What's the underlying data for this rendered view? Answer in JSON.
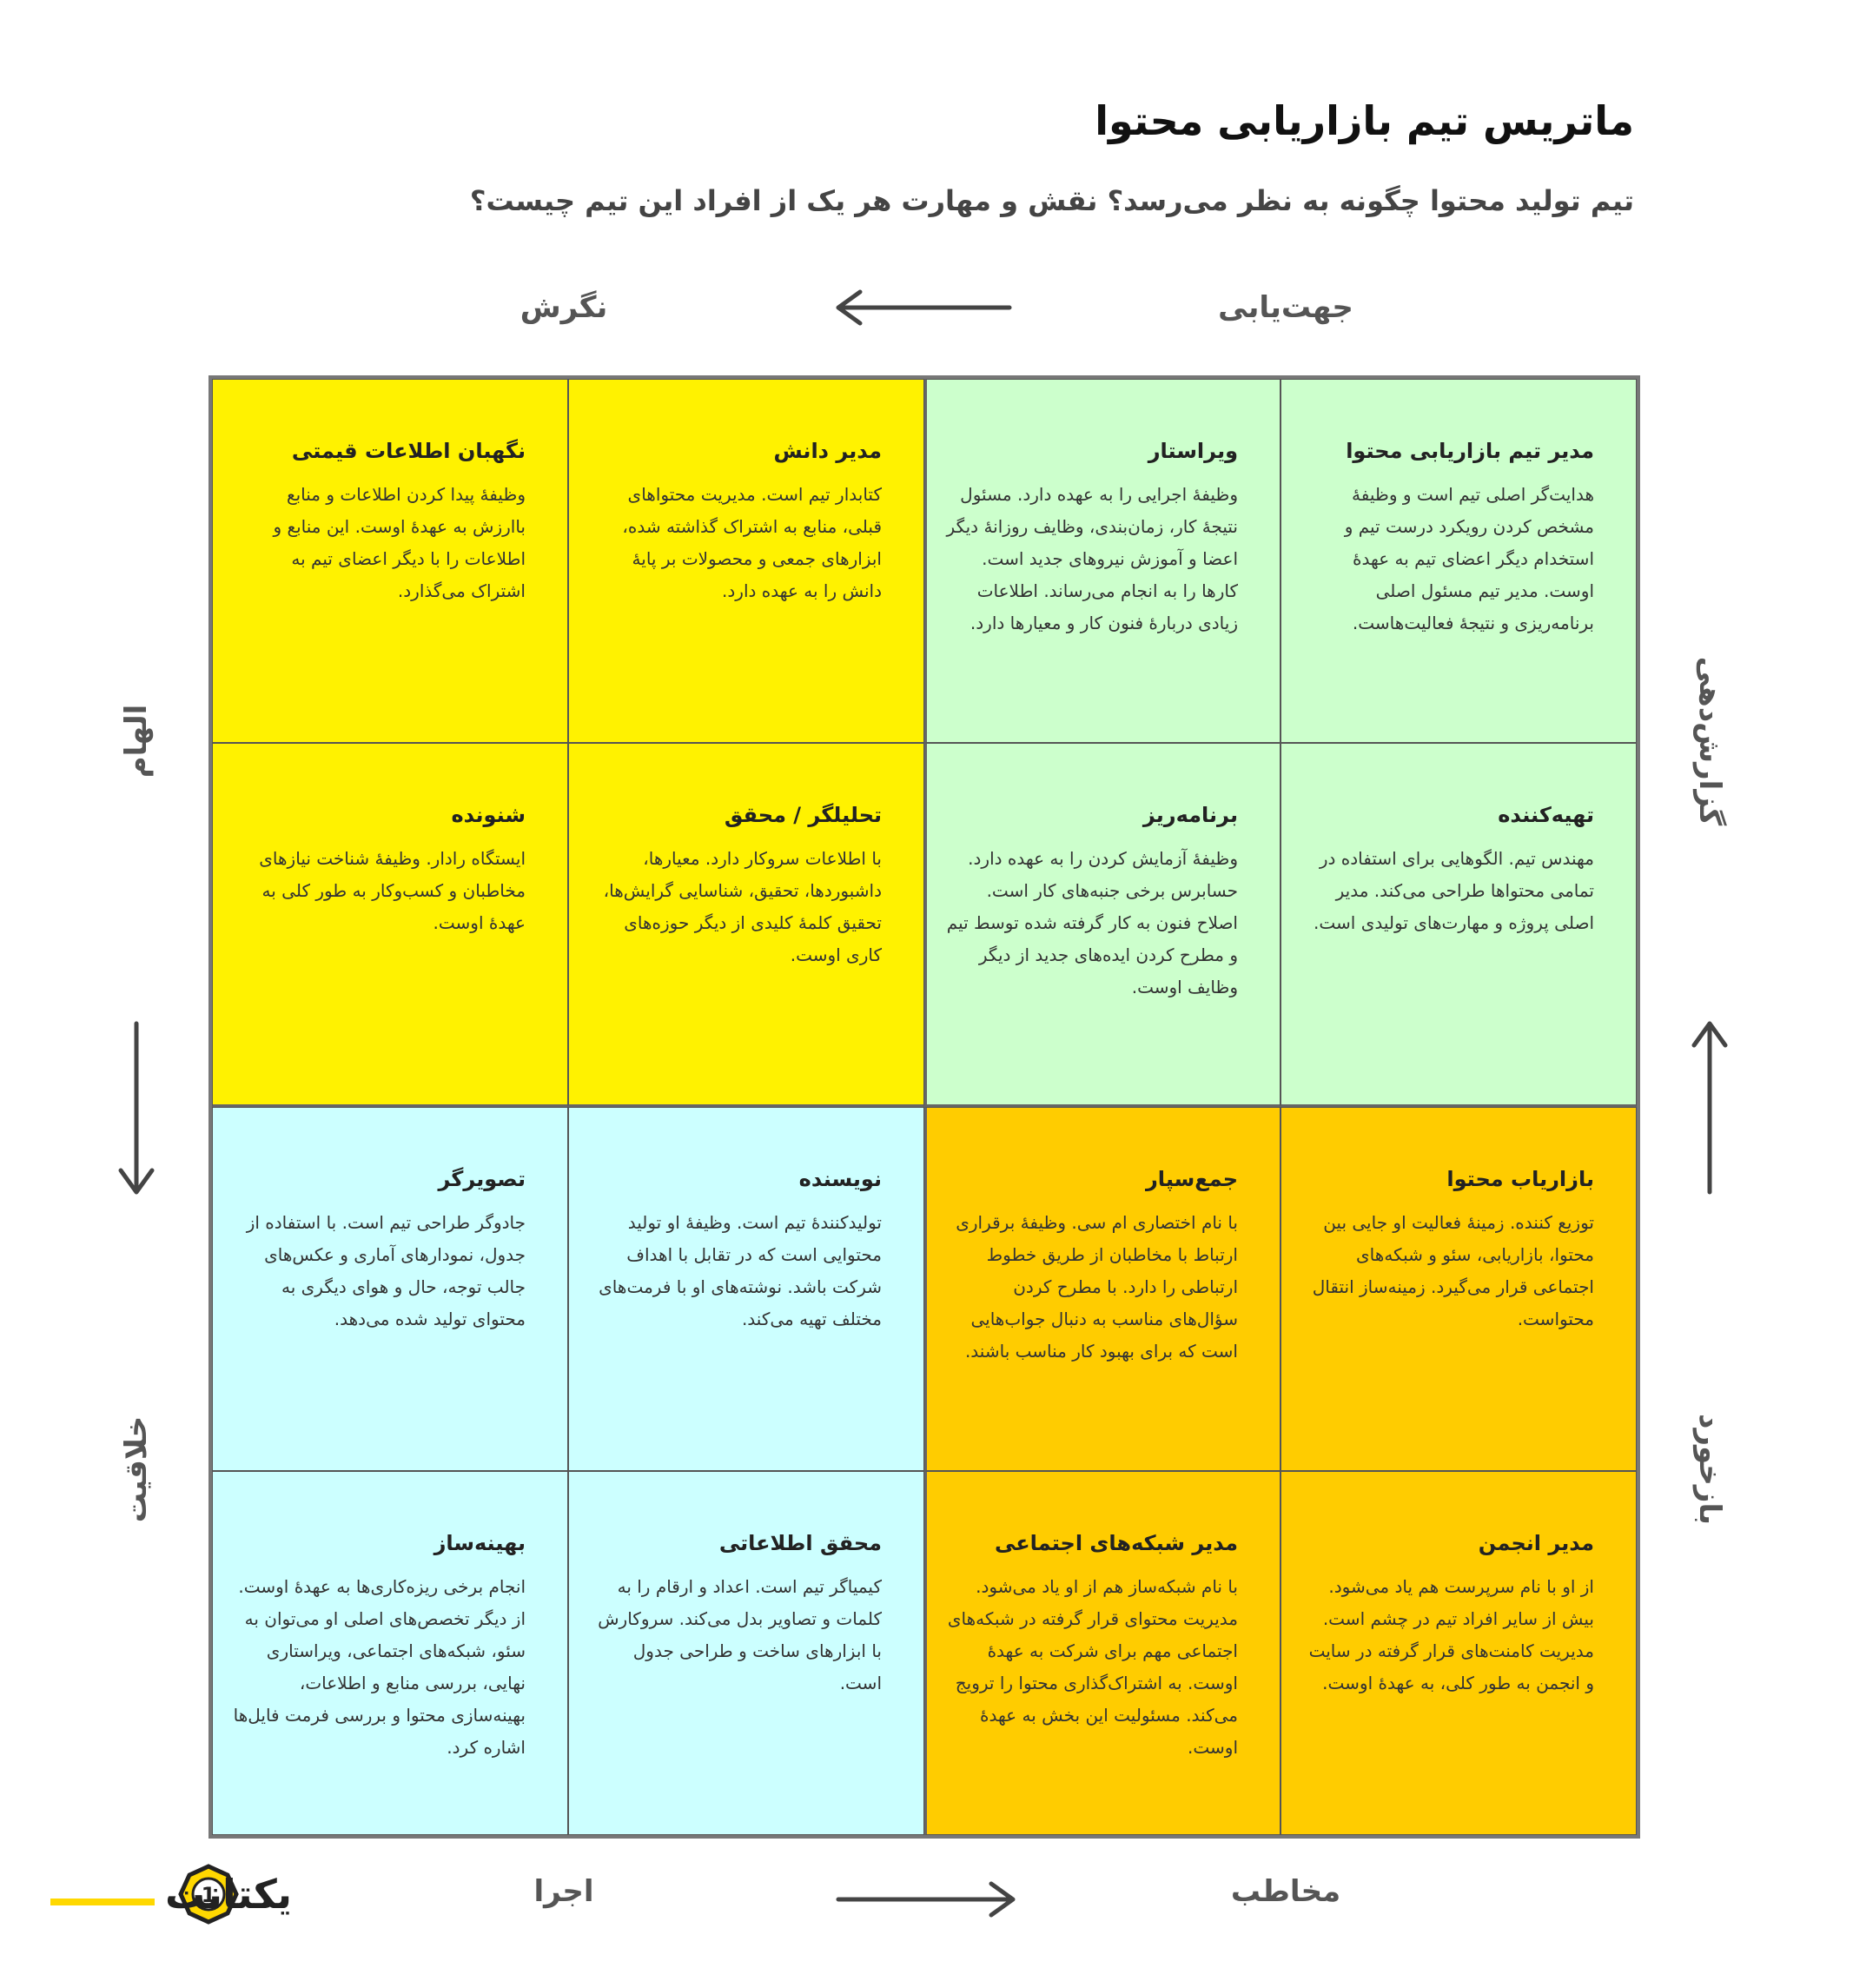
{
  "header": {
    "title": "ماتریس تیم بازاریابی محتوا",
    "subtitle": "تیم تولید محتوا چگونه به نظر می‌رسد؟ نقش و مهارت هر یک از افراد این تیم چیست؟"
  },
  "axes": {
    "top_right": "جهت‌یابی",
    "top_left": "نگرش",
    "bottom_right": "مخاطب",
    "bottom_left": "اجرا",
    "left_top": "الهام",
    "left_bottom": "خلاقیت",
    "right_top": "گزارش‌دهی",
    "right_bottom": "بازخورد"
  },
  "cells": [
    [
      {
        "title": "مدیر تیم بازاریابی محتوا",
        "body": "هدایت‌گر اصلی تیم است و وظیفهٔ مشخص کردن رویکرد درست تیم و استخدام دیگر اعضای تیم به عهدهٔ اوست. مدیر تیم مسئول اصلی برنامه‌ریزی و نتیجهٔ فعالیت‌هاست."
      },
      {
        "title": "ویراستار",
        "body": "وظیفهٔ اجرایی را به عهده دارد. مسئول نتیجهٔ کار، زمان‌بندی، وظایف روزانهٔ دیگر اعضا و آموزش نیروهای جدید است. کارها را به انجام می‌رساند. اطلاعات زیادی دربارهٔ فنون کار و معیارها دارد."
      },
      {
        "title": "مدیر دانش",
        "body": "کتابدار تیم است. مدیریت محتواهای قبلی، منابع به اشتراک گذاشته شده، ابزارهای جمعی و محصولات بر پایهٔ دانش را به عهده دارد."
      },
      {
        "title": "نگهبان اطلاعات قیمتی",
        "body": "وظیفهٔ پیدا کردن اطلاعات و منابع باارزش به عهدهٔ اوست. این منابع و اطلاعات را با دیگر اعضای تیم به اشتراک می‌گذارد."
      }
    ],
    [
      {
        "title": "تهیه‌کننده",
        "body": "مهندس تیم. الگوهایی برای استفاده در تمامی محتواها طراحی می‌کند. مدیر اصلی پروژه و مهارت‌های تولیدی است."
      },
      {
        "title": "برنامه‌ریز",
        "body": "وظیفهٔ آزمایش کردن را به عهده دارد. حسابرس برخی جنبه‌های کار است. اصلاح فنون به کار گرفته شده توسط تیم و مطرح کردن ایده‌های جدید از دیگر وظایف اوست."
      },
      {
        "title": "تحلیلگر / محقق",
        "body": "با اطلاعات سروکار دارد. معیارها، داشبوردها، تحقیق، شناسایی گرایش‌ها، تحقیق کلمهٔ کلیدی از دیگر حوزه‌های کاری اوست."
      },
      {
        "title": "شنونده",
        "body": "ایستگاه رادار. وظیفهٔ شناخت نیازهای مخاطبان و کسب‌وکار به طور کلی به عهدهٔ اوست."
      }
    ],
    [
      {
        "title": "بازاریاب محتوا",
        "body": "توزیع کننده. زمینهٔ فعالیت او جایی بین محتوا، بازاریابی، سئو و شبکه‌های اجتماعی قرار می‌گیرد. زمینه‌ساز انتقال محتواست."
      },
      {
        "title": "جمع‌سپار",
        "body": "با نام اختصاری ام سی. وظیفهٔ برقراری ارتباط با مخاطبان از طریق خطوط ارتباطی را دارد. با مطرح کردن سؤال‌های مناسب به دنبال جواب‌هایی است که برای بهبود کار مناسب باشند."
      },
      {
        "title": "نویسنده",
        "body": "تولیدکنندهٔ تیم است. وظیفهٔ او تولید محتوایی است که در تقابل با اهداف شرکت باشد. نوشته‌های او با فرمت‌های مختلف تهیه می‌کند."
      },
      {
        "title": "تصویرگر",
        "body": "جادوگر طراحی تیم است. با استفاده از جدول، نمودارهای آماری و عکس‌های جالب توجه، حال و هوای دیگری به محتوای تولید شده می‌دهد."
      }
    ],
    [
      {
        "title": "مدیر انجمن",
        "body": "از او با نام سرپرست هم یاد می‌شود. بیش از سایر افراد تیم در چشم است. مدیریت کامنت‌های قرار گرفته در سایت و انجمن به طور کلی، به عهدهٔ اوست."
      },
      {
        "title": "مدیر شبکه‌های اجتماعی",
        "body": "با نام شبکه‌ساز هم از او یاد می‌شود. مدیریت محتوای قرار گرفته در شبکه‌های اجتماعی مهم برای شرکت به عهدهٔ اوست. به اشتراک‌گذاری محتوا را ترویج می‌کند. مسئولیت این بخش به عهدهٔ اوست."
      },
      {
        "title": "محقق اطلاعاتی",
        "body": "کیمیاگر تیم است. اعداد و ارقام را به کلمات و تصاویر بدل می‌کند. سروکارش با ابزارهای ساخت و طراحی جدول است."
      },
      {
        "title": "بهینه‌ساز",
        "body": "انجام برخی ریزه‌کاری‌ها به عهدهٔ اوست. از دیگر تخصص‌های اصلی او می‌توان به سئو، شبکه‌های اجتماعی، ویراستاری نهایی، بررسی منابع و اطلاعات، بهینه‌سازی محتوا و بررسی فرمت فایل‌ها اشاره کرد."
      }
    ]
  ],
  "logo": {
    "number": "1",
    "text": "یکتانت"
  }
}
